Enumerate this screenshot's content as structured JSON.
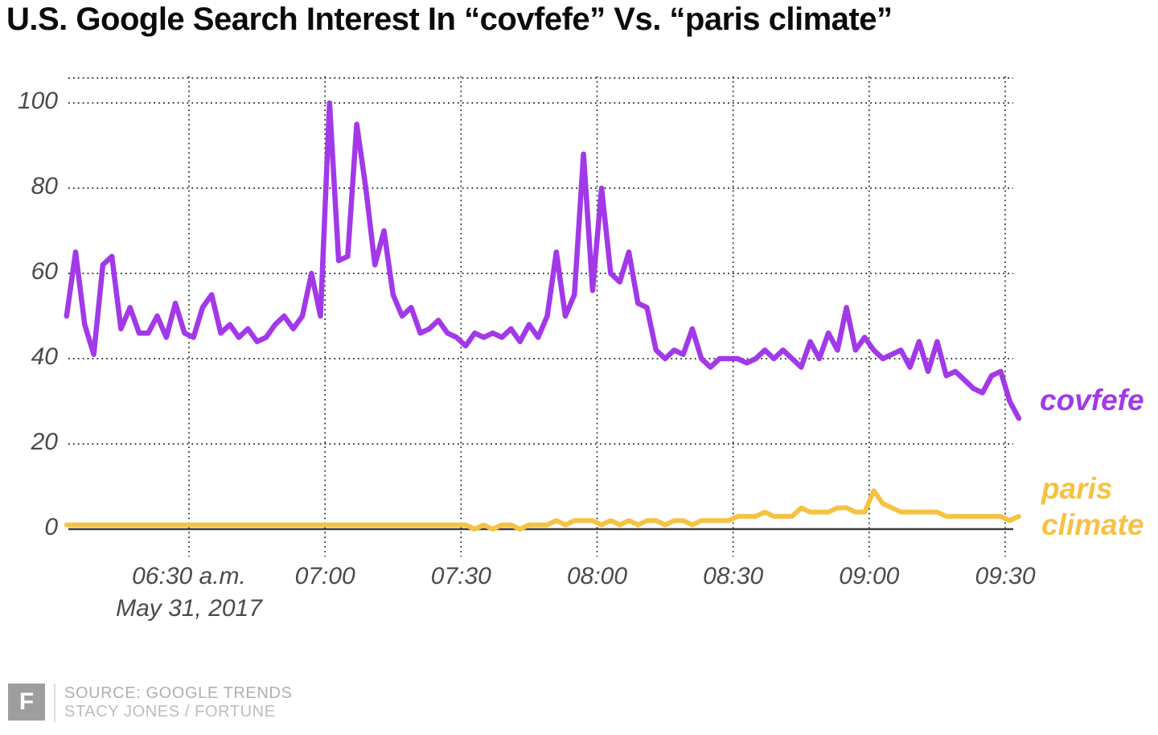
{
  "title": "U.S. Google Search Interest In “covfefe” Vs. “paris climate”",
  "chart_data": {
    "type": "line",
    "title": "U.S. Google Search Interest In “covfefe” Vs. “paris climate”",
    "x_unit": "minutes after 6:00 a.m., May 31, 2017",
    "x_sub_label": "May 31, 2017",
    "ylim": [
      0,
      100
    ],
    "grid": "dotted",
    "legend_position": "right",
    "y_ticks": [
      0,
      20,
      40,
      60,
      80,
      100
    ],
    "x_ticks": [
      {
        "minute": 30,
        "label": "06:30 a.m."
      },
      {
        "minute": 60,
        "label": "07:00"
      },
      {
        "minute": 90,
        "label": "07:30"
      },
      {
        "minute": 120,
        "label": "08:00"
      },
      {
        "minute": 150,
        "label": "08:30"
      },
      {
        "minute": 180,
        "label": "09:00"
      },
      {
        "minute": 210,
        "label": "09:30"
      }
    ],
    "x": [
      3,
      5,
      7,
      9,
      11,
      13,
      15,
      17,
      19,
      21,
      23,
      25,
      27,
      29,
      31,
      33,
      35,
      37,
      39,
      41,
      43,
      45,
      47,
      49,
      51,
      53,
      55,
      57,
      59,
      61,
      63,
      65,
      67,
      69,
      71,
      73,
      75,
      77,
      79,
      81,
      83,
      85,
      87,
      89,
      91,
      93,
      95,
      97,
      99,
      101,
      103,
      105,
      107,
      109,
      111,
      113,
      115,
      117,
      119,
      121,
      123,
      125,
      127,
      129,
      131,
      133,
      135,
      137,
      139,
      141,
      143,
      145,
      147,
      149,
      151,
      153,
      155,
      157,
      159,
      161,
      163,
      165,
      167,
      169,
      171,
      173,
      175,
      177,
      179,
      181,
      183,
      185,
      187,
      189,
      191,
      193,
      195,
      197,
      199,
      201,
      203,
      205,
      207,
      209,
      211,
      213
    ],
    "series": [
      {
        "name": "covfefe",
        "color": "#a239e8",
        "values": [
          50,
          65,
          48,
          41,
          62,
          64,
          47,
          52,
          46,
          46,
          50,
          45,
          53,
          46,
          45,
          52,
          55,
          46,
          48,
          45,
          47,
          44,
          45,
          48,
          50,
          47,
          50,
          60,
          50,
          100,
          63,
          64,
          95,
          80,
          62,
          70,
          55,
          50,
          52,
          46,
          47,
          49,
          46,
          45,
          43,
          46,
          45,
          46,
          45,
          47,
          44,
          48,
          45,
          50,
          65,
          50,
          55,
          88,
          56,
          80,
          60,
          58,
          65,
          53,
          52,
          42,
          40,
          42,
          41,
          47,
          40,
          38,
          40,
          40,
          40,
          39,
          40,
          42,
          40,
          42,
          40,
          38,
          44,
          40,
          46,
          42,
          52,
          42,
          45,
          42,
          40,
          41,
          42,
          38,
          44,
          37,
          44,
          36,
          37,
          35,
          33,
          32,
          36,
          37,
          30,
          26
        ]
      },
      {
        "name": "paris climate",
        "color": "#f5c242",
        "values": [
          1,
          1,
          1,
          1,
          1,
          1,
          1,
          1,
          1,
          1,
          1,
          1,
          1,
          1,
          1,
          1,
          1,
          1,
          1,
          1,
          1,
          1,
          1,
          1,
          1,
          1,
          1,
          1,
          1,
          1,
          1,
          1,
          1,
          1,
          1,
          1,
          1,
          1,
          1,
          1,
          1,
          1,
          1,
          1,
          1,
          0,
          1,
          0,
          1,
          1,
          0,
          1,
          1,
          1,
          2,
          1,
          2,
          2,
          2,
          1,
          2,
          1,
          2,
          1,
          2,
          2,
          1,
          2,
          2,
          1,
          2,
          2,
          2,
          2,
          3,
          3,
          3,
          4,
          3,
          3,
          3,
          5,
          4,
          4,
          4,
          5,
          5,
          4,
          4,
          9,
          6,
          5,
          4,
          4,
          4,
          4,
          4,
          3,
          3,
          3,
          3,
          3,
          3,
          3,
          2,
          3
        ]
      }
    ],
    "legend": {
      "covfefe_label": "covfefe",
      "paris_label_line1": "paris",
      "paris_label_line2": "climate"
    }
  },
  "footer": {
    "logo": "F",
    "source_line1": "SOURCE: GOOGLE TRENDS",
    "source_line2": "STACY JONES / FORTUNE"
  }
}
